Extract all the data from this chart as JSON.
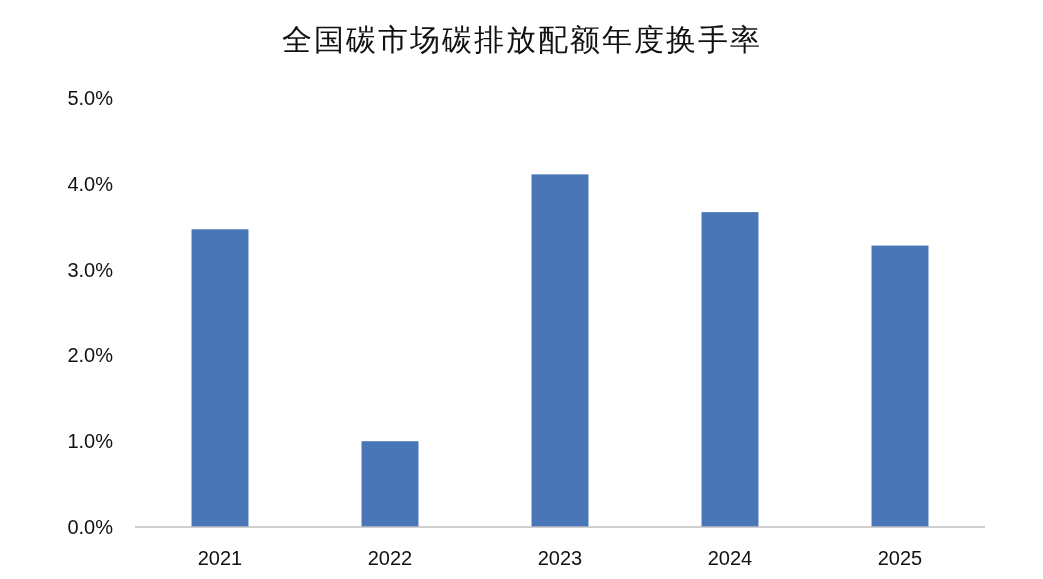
{
  "chart_data": {
    "type": "bar",
    "title": "全国碳市场碳排放配额年度换手率",
    "categories": [
      "2021",
      "2022",
      "2023",
      "2024",
      "2025"
    ],
    "values": [
      3.47,
      1.0,
      4.11,
      3.67,
      3.28
    ],
    "color": "#4a76b8",
    "ylim": [
      0,
      5
    ],
    "yticks": [
      {
        "value": 0,
        "label": "0.0%"
      },
      {
        "value": 1,
        "label": "1.0%"
      },
      {
        "value": 2,
        "label": "2.0%"
      },
      {
        "value": 3,
        "label": "3.0%"
      },
      {
        "value": 4,
        "label": "4.0%"
      },
      {
        "value": 5,
        "label": "5.0%"
      }
    ],
    "grid": false
  }
}
